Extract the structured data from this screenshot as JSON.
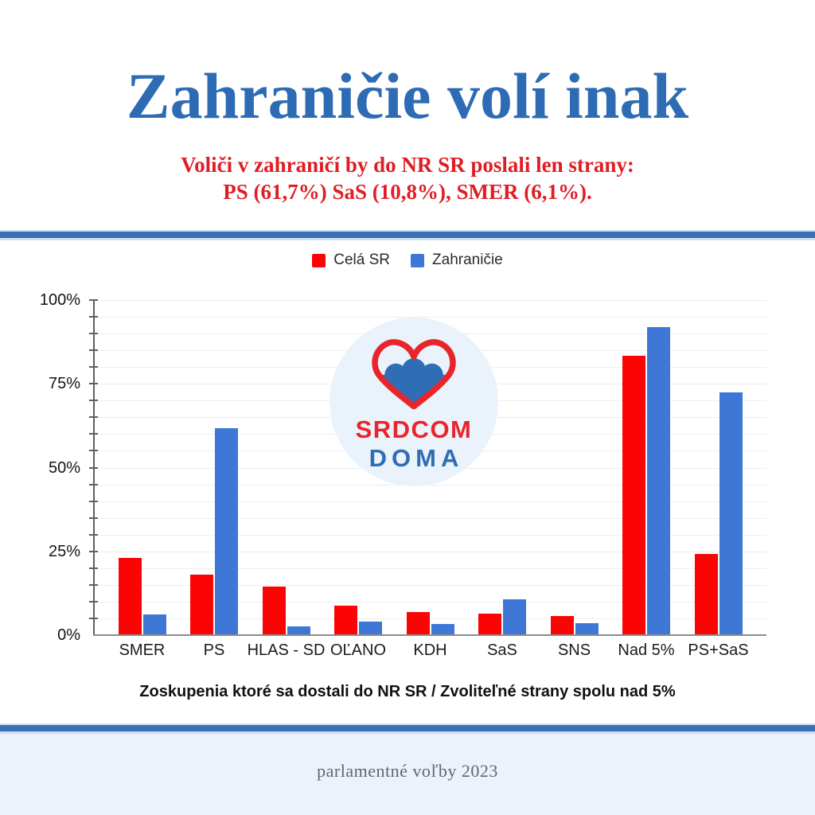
{
  "header": {
    "title": "Zahraničie volí inak",
    "subtitle_line1": "Voliči v zahraničí by do NR SR poslali len strany:",
    "subtitle_line2": "PS (61,7%) SaS (10,8%), SMER (6,1%)."
  },
  "logo": {
    "line1": "SRDCOM",
    "line2": "DOMA",
    "icon": "heart-with-waves-icon"
  },
  "chart_data": {
    "type": "bar",
    "title": "",
    "categories": [
      "SMER",
      "PS",
      "HLAS - SD",
      "OĽANO",
      "KDH",
      "SaS",
      "SNS",
      "Nad 5%",
      "PS+SaS"
    ],
    "series": [
      {
        "name": "Celá SR",
        "color": "#fb0404",
        "values": [
          23,
          18,
          14.5,
          8.9,
          6.8,
          6.3,
          5.6,
          83.3,
          24.3
        ]
      },
      {
        "name": "Zahraničie",
        "color": "#3f77d6",
        "values": [
          6.1,
          61.7,
          2.5,
          4,
          3.4,
          10.8,
          3.6,
          92,
          72.5
        ]
      }
    ],
    "xlabel": "Zoskupenia ktoré sa dostali do NR SR / Zvoliteľné strany spolu nad 5%",
    "ylabel": "",
    "ylim": [
      0,
      100
    ],
    "yticks": [
      {
        "value": 0,
        "label": "0%"
      },
      {
        "value": 25,
        "label": "25%"
      },
      {
        "value": 50,
        "label": "50%"
      },
      {
        "value": 75,
        "label": "75%"
      },
      {
        "value": 100,
        "label": "100%"
      }
    ],
    "grid": {
      "visible": true,
      "minor_step_percent": 5
    },
    "legend_position": "top-center"
  },
  "footer": {
    "text": "parlamentné voľby 2023"
  },
  "colors": {
    "title_blue": "#2d6cb4",
    "subtitle_red": "#e01d24",
    "divider_blue": "#3a70b5",
    "bar_red": "#fb0404",
    "bar_blue": "#3f77d6",
    "logo_circle_bg": "#eaf3fb",
    "logo_red": "#e8252b",
    "logo_blue": "#2f6eb5",
    "footer_bg": "#edf1fa",
    "footer_text": "#5f6771"
  }
}
